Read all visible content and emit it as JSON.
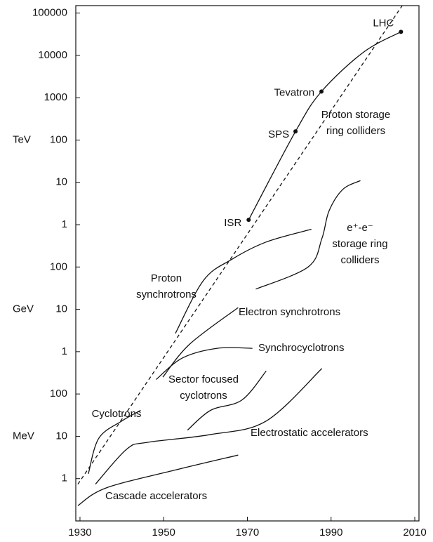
{
  "chart_data": {
    "type": "line",
    "log_y": true,
    "xlim": [
      1929,
      2011
    ],
    "ylim": [
      0.1,
      150000000000
    ],
    "xticks": [
      1930,
      1950,
      1970,
      1990,
      2010
    ],
    "yticks": [
      1,
      10,
      100,
      {
        "value": 1000,
        "label": "1"
      },
      {
        "value": 10000,
        "label": "10"
      },
      {
        "value": 100000,
        "label": "100"
      },
      {
        "value": 1000000,
        "label": "1"
      },
      {
        "value": 10000000,
        "label": "10"
      },
      {
        "value": 100000000,
        "label": "100"
      },
      {
        "value": 1000000000,
        "label": "1000"
      },
      {
        "value": 10000000000,
        "label": "10000"
      },
      {
        "value": 100000000000,
        "label": "100000"
      }
    ],
    "unit_labels": [
      {
        "label": "MeV",
        "value": 10
      },
      {
        "label": "GeV",
        "value": 10000
      },
      {
        "label": "TeV",
        "value": 100000000
      }
    ],
    "series": [
      {
        "name": [
          "Cascade accelerators"
        ],
        "color": "#111",
        "x": [
          1929.5,
          1936.2,
          1952.8,
          1967.8
        ],
        "values": [
          0.23,
          0.6,
          1.6,
          3.6
        ]
      },
      {
        "name": [
          "Electrostatic accelerators"
        ],
        "color": "#111",
        "x": [
          1933.7,
          1941.2,
          1946.2,
          1961.2,
          1974.5,
          1987.8
        ],
        "values": [
          0.74,
          5,
          7.2,
          11,
          23,
          400
        ]
      },
      {
        "name": [
          "Cyclotrons"
        ],
        "color": "#111",
        "x": [
          1932,
          1934.5,
          1940,
          1944.5
        ],
        "values": [
          1.3,
          9,
          23,
          41
        ]
      },
      {
        "name": [
          "Sector focused",
          "cyclotrons"
        ],
        "color": "#111",
        "x": [
          1955.7,
          1961.2,
          1968.7,
          1974.5
        ],
        "values": [
          14,
          41,
          72,
          350
        ]
      },
      {
        "name": [
          "Synchrocyclotrons"
        ],
        "color": "#111",
        "x": [
          1948.2,
          1954.5,
          1962.8,
          1971.2
        ],
        "values": [
          220,
          710,
          1200,
          1200
        ]
      },
      {
        "name": [
          "Electron synchrotrons"
        ],
        "color": "#111",
        "x": [
          1949.8,
          1956.2,
          1967.8
        ],
        "values": [
          250,
          1500,
          11000
        ]
      },
      {
        "name": [
          "Proton",
          "synchrotrons"
        ],
        "color": "#111",
        "x": [
          1952.8,
          1959.5,
          1966.2,
          1974.5,
          1985.3
        ],
        "values": [
          2700,
          48000,
          150000,
          390000,
          780000
        ]
      },
      {
        "name": [
          "e⁺-e⁻",
          "storage ring",
          "colliders"
        ],
        "color": "#111",
        "x": [
          1972,
          1984.5,
          1987.8,
          1989.5,
          1992.8,
          1997
        ],
        "values": [
          30000,
          100000,
          470000,
          2100000,
          6800000,
          11000000
        ]
      },
      {
        "name": [
          "Proton storage",
          "ring colliders"
        ],
        "color": "#111",
        "markers": true,
        "point_labels": [
          "ISR",
          "SPS",
          "Tevatron",
          null,
          "LHC"
        ],
        "x": [
          1970.3,
          1981.5,
          1987.7,
          1997.8,
          2006.7
        ],
        "values": [
          1300000,
          160000000,
          1400000000,
          12000000000,
          36000000000
        ]
      },
      {
        "color": "#111",
        "dashed": true,
        "x": [
          1929.5,
          2007
        ],
        "values": [
          0.74,
          150000000000
        ]
      }
    ]
  }
}
